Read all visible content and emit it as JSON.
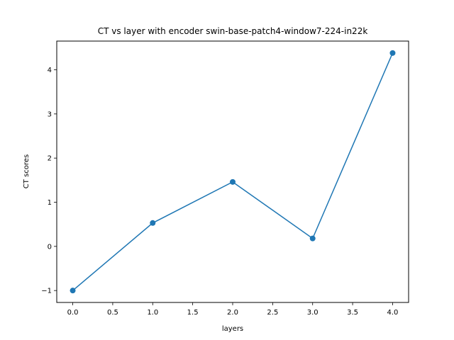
{
  "chart_data": {
    "type": "line",
    "title": "CT vs layer with encoder swin-base-patch4-window7-224-in22k",
    "xlabel": "layers",
    "ylabel": "CT scores",
    "x": [
      0.0,
      1.0,
      2.0,
      3.0,
      4.0
    ],
    "series": [
      {
        "values": [
          -1.0,
          0.53,
          1.46,
          0.18,
          4.38
        ],
        "color": "#1f77b4",
        "marker": "circle"
      }
    ],
    "xlim": [
      -0.2,
      4.2
    ],
    "ylim": [
      -1.27,
      4.65
    ],
    "x_ticks": [
      0.0,
      0.5,
      1.0,
      1.5,
      2.0,
      2.5,
      3.0,
      3.5,
      4.0
    ],
    "x_tick_labels": [
      "0.0",
      "0.5",
      "1.0",
      "1.5",
      "2.0",
      "2.5",
      "3.0",
      "3.5",
      "4.0"
    ],
    "y_ticks": [
      -1,
      0,
      1,
      2,
      3,
      4
    ],
    "y_tick_labels": [
      "−1",
      "0",
      "1",
      "2",
      "3",
      "4"
    ],
    "grid": false,
    "legend": "none"
  }
}
